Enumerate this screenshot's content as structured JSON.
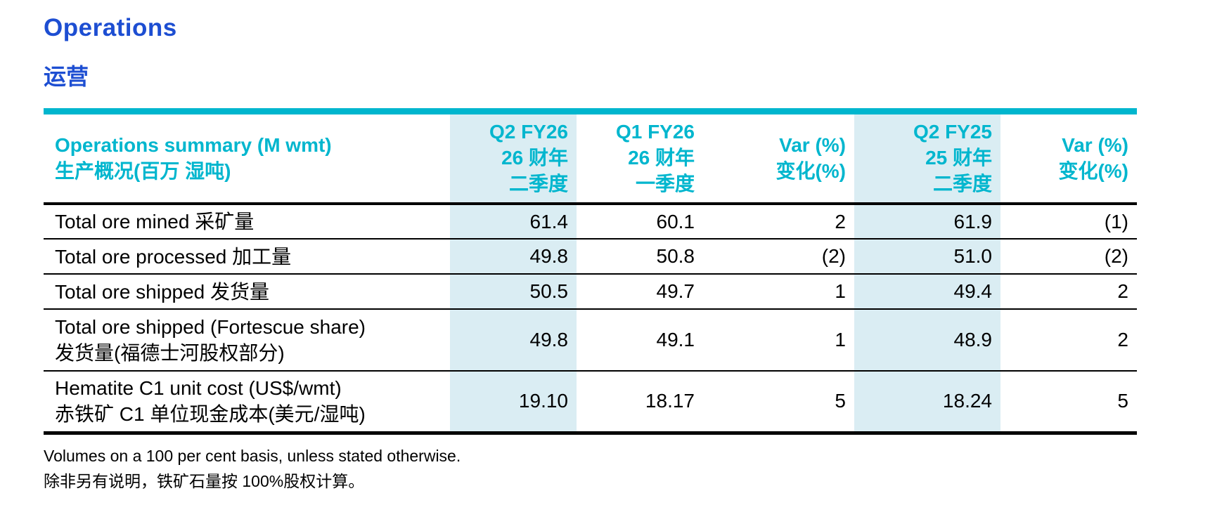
{
  "colors": {
    "blue": "#1D4ED2",
    "cyan": "#00B6CE",
    "highlight": "#DAEDF3"
  },
  "page": {
    "title_en": "Operations",
    "title_zh": "运营"
  },
  "table": {
    "header": {
      "label_en": "Operations summary (M wmt)",
      "label_zh": "生产概况(百万 湿吨)",
      "cols": [
        {
          "l1": "Q2 FY26",
          "l2": "26 财年",
          "l3": "二季度"
        },
        {
          "l1": "Q1 FY26",
          "l2": "26 财年",
          "l3": "一季度"
        },
        {
          "l1": "Var (%)",
          "l2": "变化(%)"
        },
        {
          "l1": "Q2 FY25",
          "l2": "25 财年",
          "l3": "二季度"
        },
        {
          "l1": "Var (%)",
          "l2": "变化(%)"
        }
      ]
    },
    "rows": [
      {
        "en": "Total ore mined",
        "zh": "采矿量",
        "values": [
          "61.4",
          "60.1",
          "2",
          "61.9",
          "(1)"
        ]
      },
      {
        "en": "Total ore processed",
        "zh": "加工量",
        "values": [
          "49.8",
          "50.8",
          "(2)",
          "51.0",
          "(2)"
        ]
      },
      {
        "en": "Total ore shipped",
        "zh": "发货量",
        "values": [
          "50.5",
          "49.7",
          "1",
          "49.4",
          "2"
        ]
      },
      {
        "en": "Total ore shipped (Fortescue share)",
        "zh": "发货量(福德士河股权部分)",
        "values": [
          "49.8",
          "49.1",
          "1",
          "48.9",
          "2"
        ]
      },
      {
        "en": "Hematite C1 unit cost (US$/wmt)",
        "zh": "赤铁矿 C1 单位现金成本(美元/湿吨)",
        "values": [
          "19.10",
          "18.17",
          "5",
          "18.24",
          "5"
        ]
      }
    ]
  },
  "footnotes": [
    "Volumes on a 100 per cent basis, unless stated otherwise.",
    "除非另有说明，铁矿石量按 100%股权计算。"
  ]
}
